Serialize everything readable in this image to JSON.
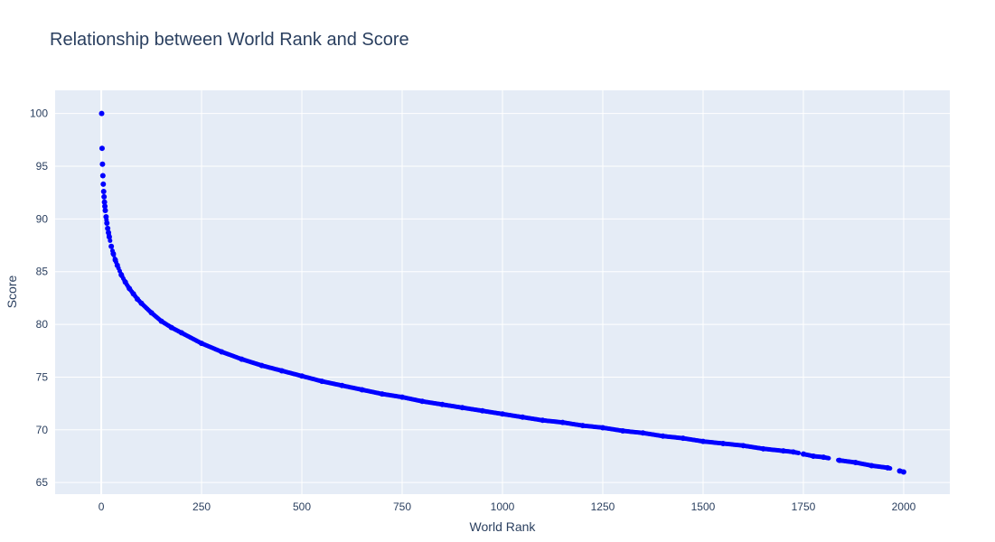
{
  "chart_data": {
    "type": "scatter",
    "title": "Relationship between World Rank and Score",
    "xlabel": "World Rank",
    "ylabel": "Score",
    "xlim": [
      -115,
      2115
    ],
    "ylim": [
      63.9,
      102.2
    ],
    "xticks": [
      0,
      250,
      500,
      750,
      1000,
      1250,
      1500,
      1750,
      2000
    ],
    "xtick_labels": [
      "0",
      "250",
      "500",
      "750",
      "1000",
      "1250",
      "1500",
      "1750",
      "2000"
    ],
    "yticks": [
      65,
      70,
      75,
      80,
      85,
      90,
      95,
      100
    ],
    "ytick_labels": [
      "65",
      "70",
      "75",
      "80",
      "85",
      "90",
      "95",
      "100"
    ],
    "grid": true,
    "marker_color": "#0000ff",
    "plot_bg": "#e5ecf6",
    "series": [
      {
        "x": [
          1,
          2,
          3,
          4,
          5,
          6,
          7,
          8,
          9,
          10,
          12,
          14,
          16,
          18,
          20,
          25,
          30,
          35,
          40,
          50,
          60,
          70,
          80,
          90,
          100,
          125,
          150,
          175,
          200,
          250,
          300,
          350,
          400,
          450,
          500,
          550,
          600,
          650,
          700,
          750,
          800,
          850,
          900,
          950,
          1000,
          1050,
          1100,
          1150,
          1200,
          1250,
          1300,
          1350,
          1400,
          1450,
          1500,
          1550,
          1600,
          1650,
          1700,
          1725,
          1750,
          1775,
          1800,
          1840,
          1880,
          1920,
          1960,
          1990,
          2000
        ],
        "y": [
          100,
          96.7,
          95.2,
          94.1,
          93.3,
          92.6,
          92.1,
          91.6,
          91.2,
          90.8,
          90.2,
          89.6,
          89.1,
          88.7,
          88.3,
          87.4,
          86.7,
          86.1,
          85.6,
          84.7,
          84.0,
          83.4,
          82.9,
          82.4,
          82.0,
          81.1,
          80.3,
          79.7,
          79.2,
          78.2,
          77.4,
          76.7,
          76.1,
          75.6,
          75.1,
          74.6,
          74.2,
          73.8,
          73.4,
          73.1,
          72.7,
          72.4,
          72.1,
          71.8,
          71.5,
          71.2,
          70.9,
          70.7,
          70.4,
          70.2,
          69.9,
          69.7,
          69.4,
          69.2,
          68.9,
          68.7,
          68.5,
          68.2,
          68.0,
          67.9,
          67.7,
          67.5,
          67.4,
          67.1,
          66.9,
          66.6,
          66.4,
          66.1,
          66.0
        ]
      }
    ]
  }
}
